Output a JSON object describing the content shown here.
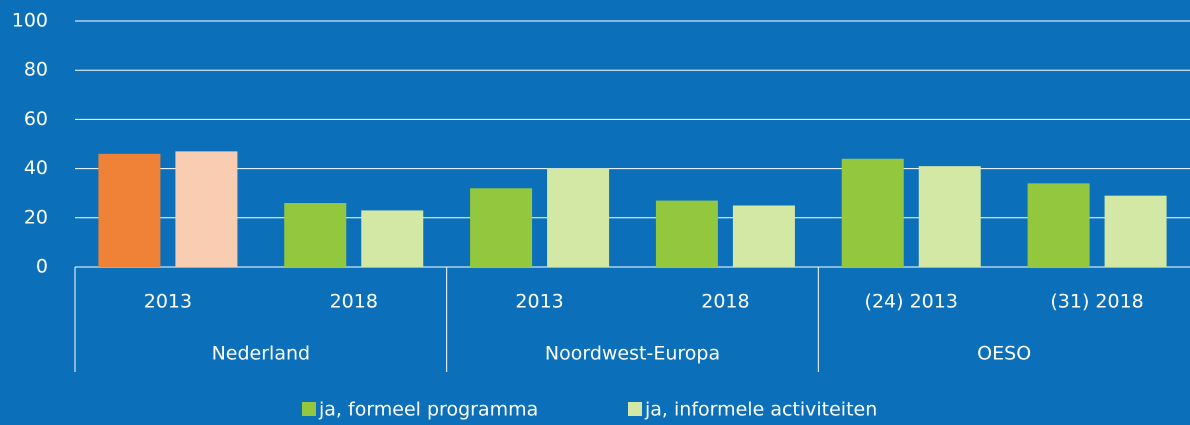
{
  "chart_data": {
    "type": "bar",
    "categories": [
      "2013",
      "2018",
      "2013",
      "2018",
      "(24) 2013",
      "(31) 2018"
    ],
    "group_labels": [
      "Nederland",
      "Noordwest-Europa",
      "OESO"
    ],
    "series": [
      {
        "name": "ja, formeel programma",
        "color": "#93c83e",
        "colors": [
          "#ef8236",
          "#93c83e",
          "#93c83e",
          "#93c83e",
          "#93c83e",
          "#93c83e"
        ],
        "values": [
          46,
          26,
          32,
          27,
          44,
          34
        ]
      },
      {
        "name": "ja, informele activiteiten",
        "color": "#d4e8a6",
        "colors": [
          "#f9cdb2",
          "#d4e8a6",
          "#d4e8a6",
          "#d4e8a6",
          "#d4e8a6",
          "#d4e8a6"
        ],
        "values": [
          47,
          23,
          40,
          25,
          41,
          29
        ]
      }
    ],
    "ylim": [
      0,
      100
    ],
    "yticks": [
      0,
      20,
      40,
      60,
      80,
      100
    ],
    "grid": true
  }
}
